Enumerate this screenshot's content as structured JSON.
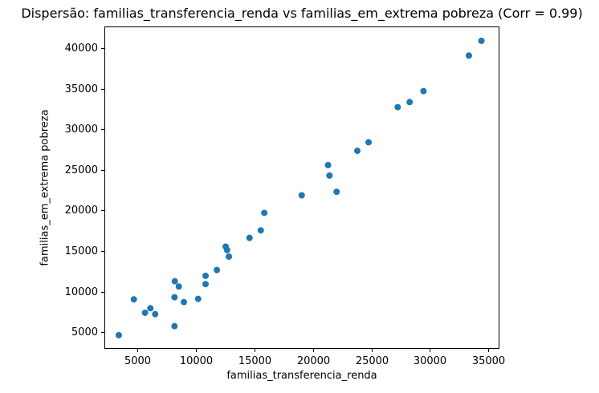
{
  "chart_data": {
    "type": "scatter",
    "title": "Dispersão: familias_transferencia_renda vs familias_em_extrema pobreza (Corr = 0.99)",
    "xlabel": "familias_transferencia_renda",
    "ylabel": "familias_em_extrema pobreza",
    "correlation": "0.99",
    "xlim": [
      2190,
      35940
    ],
    "ylim": [
      2950,
      42665
    ],
    "x_ticks": [
      5000,
      10000,
      15000,
      20000,
      25000,
      30000,
      35000
    ],
    "y_ticks": [
      5000,
      10000,
      15000,
      20000,
      25000,
      30000,
      35000,
      40000
    ],
    "grid": false,
    "legend": null,
    "marker_color": "#1f77b4",
    "spine_color": "#000000",
    "points": [
      [
        3420,
        4640
      ],
      [
        4705,
        9050
      ],
      [
        5665,
        7400
      ],
      [
        6120,
        7960
      ],
      [
        6530,
        7230
      ],
      [
        8205,
        11280
      ],
      [
        8550,
        10630
      ],
      [
        8180,
        9310
      ],
      [
        8980,
        8715
      ],
      [
        8180,
        5750
      ],
      [
        10200,
        9110
      ],
      [
        10835,
        11950
      ],
      [
        10835,
        10930
      ],
      [
        11800,
        12665
      ],
      [
        12550,
        15550
      ],
      [
        12670,
        15140
      ],
      [
        12825,
        14320
      ],
      [
        14590,
        16620
      ],
      [
        15550,
        17550
      ],
      [
        15850,
        19700
      ],
      [
        19050,
        21870
      ],
      [
        21300,
        25590
      ],
      [
        21420,
        24300
      ],
      [
        22030,
        22300
      ],
      [
        23800,
        27350
      ],
      [
        24760,
        28400
      ],
      [
        27250,
        32730
      ],
      [
        28270,
        33350
      ],
      [
        29450,
        34700
      ],
      [
        33330,
        39080
      ],
      [
        34400,
        40900
      ]
    ]
  }
}
